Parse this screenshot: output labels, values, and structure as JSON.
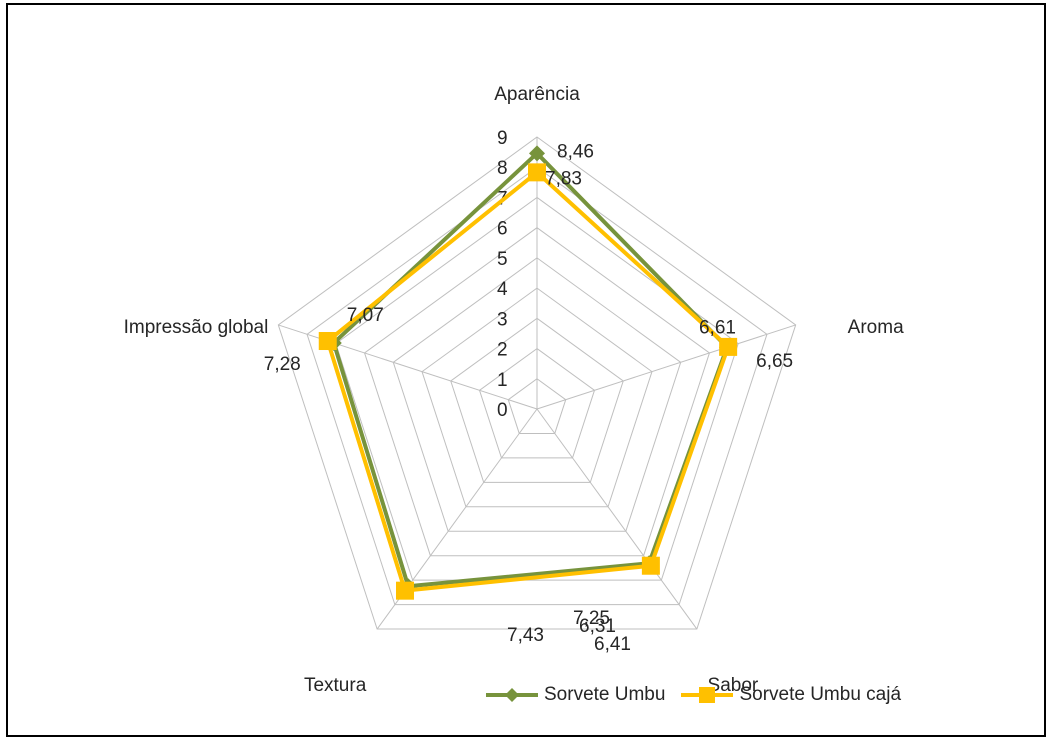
{
  "chart_data": {
    "type": "radar",
    "axes": [
      "Aparência",
      "Aroma",
      "Sabor",
      "Textura",
      "Impressão global"
    ],
    "rlim": [
      0,
      9
    ],
    "ticks": [
      "0",
      "1",
      "2",
      "3",
      "4",
      "5",
      "6",
      "7",
      "8",
      "9"
    ],
    "grid": true,
    "legend_position": "bottom",
    "series": [
      {
        "name": "Sorvete Umbu",
        "values": [
          8.46,
          6.61,
          6.31,
          7.25,
          7.07
        ],
        "labels": [
          "8,46",
          "6,61",
          "6,31",
          "7,25",
          "7,07"
        ],
        "color": "#77933C",
        "marker": "diamond"
      },
      {
        "name": "Sorvete Umbu cajá",
        "values": [
          7.83,
          6.65,
          6.41,
          7.43,
          7.28
        ],
        "labels": [
          "7,83",
          "6,65",
          "6,41",
          "7,43",
          "7,28"
        ],
        "color": "#FFC000",
        "marker": "square"
      }
    ]
  }
}
